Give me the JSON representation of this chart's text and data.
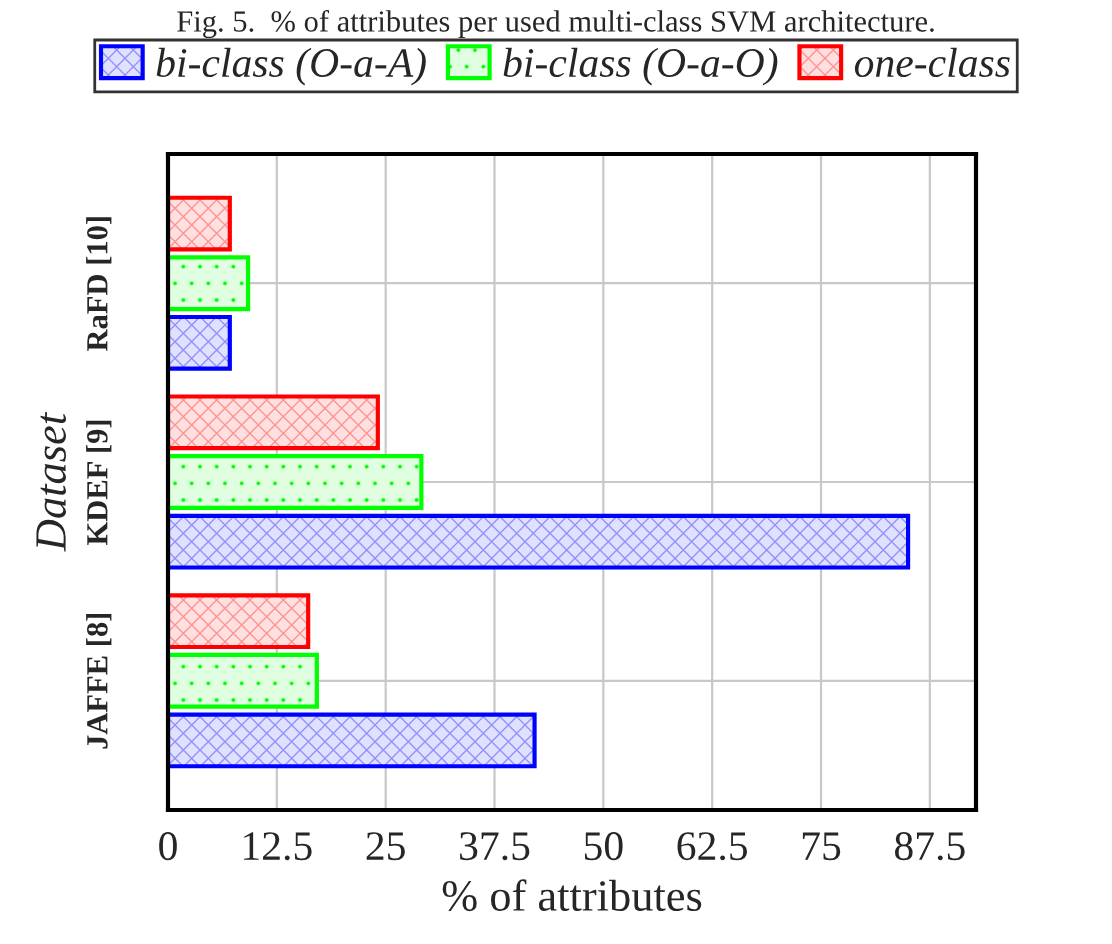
{
  "chart_data": {
    "type": "bar",
    "orientation": "horizontal",
    "title": "Fig. 5.  % of attributes per used multi-class SVM architecture.",
    "xlabel": "% of attributes",
    "ylabel": "Dataset",
    "categories": [
      "RaFD [10]",
      "KDEF [9]",
      "JAFFE [8]"
    ],
    "series": [
      {
        "name": "bi-class (O-a-A)",
        "color": "#0000ff",
        "values": [
          7.1,
          85.0,
          42.1
        ]
      },
      {
        "name": "bi-class (O-a-O)",
        "color": "#00ff00",
        "values": [
          9.2,
          29.1,
          17.1
        ]
      },
      {
        "name": "one-class",
        "color": "#ff0000",
        "values": [
          7.1,
          24.1,
          16.1
        ]
      }
    ],
    "xlim": [
      0,
      92.8
    ],
    "xticks": [
      0,
      12.5,
      25,
      37.5,
      50,
      62.5,
      75,
      87.5
    ],
    "grid": true,
    "legend": "top"
  }
}
